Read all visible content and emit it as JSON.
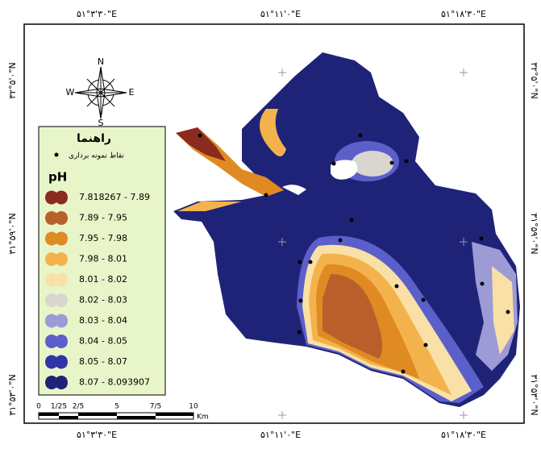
{
  "frame": {
    "top_labels": [
      "۵۱°۳'۳۰\"E",
      "۵۱°۱۱'۰\"E",
      "۵۱°۱۸'۳۰\"E"
    ],
    "bottom_labels": [
      "۵۱°۳'۳۰\"E",
      "۵۱°۱۱'۰\"E",
      "۵۱°۱۸'۳۰\"E"
    ],
    "left_labels": [
      "۳۲°۵'۰\"N",
      "۳۱°۵۹'۰\"N",
      "۳۱°۵۳'۰\"N"
    ],
    "right_labels": [
      "۳۲°۵'۰\"N",
      "۳۱°۵۹'۰\"N",
      "۳۱°۵۳'۰\"N"
    ]
  },
  "compass": {
    "north": "N",
    "south": "S",
    "east": "E",
    "west": "W"
  },
  "legend": {
    "title": "راهنما",
    "points_label": "نقاط نمونه برداری",
    "variable": "pH",
    "items": [
      {
        "label": "7.818267 - 7.89",
        "color": "#8b2a1e"
      },
      {
        "label": "7.89 - 7.95",
        "color": "#b9602a"
      },
      {
        "label": "7.95 - 7.98",
        "color": "#e08a23"
      },
      {
        "label": "7.98 - 8.01",
        "color": "#f4b24c"
      },
      {
        "label": "8.01 - 8.02",
        "color": "#f8e0a6"
      },
      {
        "label": "8.02 - 8.03",
        "color": "#d9d5cf"
      },
      {
        "label": "8.03 - 8.04",
        "color": "#9c9bd6"
      },
      {
        "label": "8.04 - 8.05",
        "color": "#5b5fc9"
      },
      {
        "label": "8.05 - 8.07",
        "color": "#2f35a6"
      },
      {
        "label": "8.07 - 8.093907",
        "color": "#1f2378"
      }
    ]
  },
  "scale_bar": {
    "labels": [
      "0",
      "1/25",
      "2/5",
      "5",
      "7/5",
      "10"
    ],
    "unit": "Km"
  }
}
